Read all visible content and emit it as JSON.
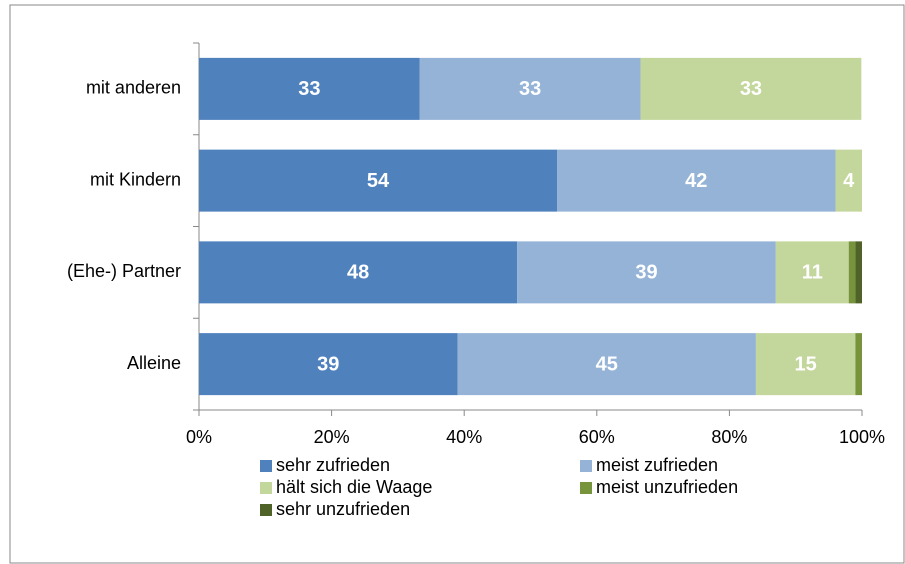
{
  "chart_data": {
    "type": "stacked-bar-horizontal",
    "categories": [
      "mit anderen",
      "mit Kindern",
      "(Ehe-) Partner",
      "Alleine"
    ],
    "series": [
      {
        "name": "sehr zufrieden",
        "color": "#4f81bd",
        "values": [
          33.3,
          54,
          48,
          39
        ],
        "value_labels": [
          "33",
          "54",
          "48",
          "39"
        ]
      },
      {
        "name": "meist zufrieden",
        "color": "#95b3d7",
        "values": [
          33.3,
          42,
          39,
          45
        ],
        "value_labels": [
          "33",
          "42",
          "39",
          "45"
        ]
      },
      {
        "name": "hält sich die Waage",
        "color": "#c3d69b",
        "values": [
          33.3,
          4,
          11,
          15
        ],
        "value_labels": [
          "33",
          "4",
          "11",
          "15"
        ]
      },
      {
        "name": "meist unzufrieden",
        "color": "#77933c",
        "values": [
          0,
          0,
          1,
          1
        ]
      },
      {
        "name": "sehr unzufrieden",
        "color": "#4f6228",
        "values": [
          0,
          0,
          1,
          0
        ]
      }
    ],
    "xlim": [
      0,
      100
    ],
    "xticks": [
      {
        "value": 0,
        "label": "0%"
      },
      {
        "value": 20,
        "label": "20%"
      },
      {
        "value": 40,
        "label": "40%"
      },
      {
        "value": 60,
        "label": "60%"
      },
      {
        "value": 80,
        "label": "80%"
      },
      {
        "value": 100,
        "label": "100%"
      }
    ]
  }
}
